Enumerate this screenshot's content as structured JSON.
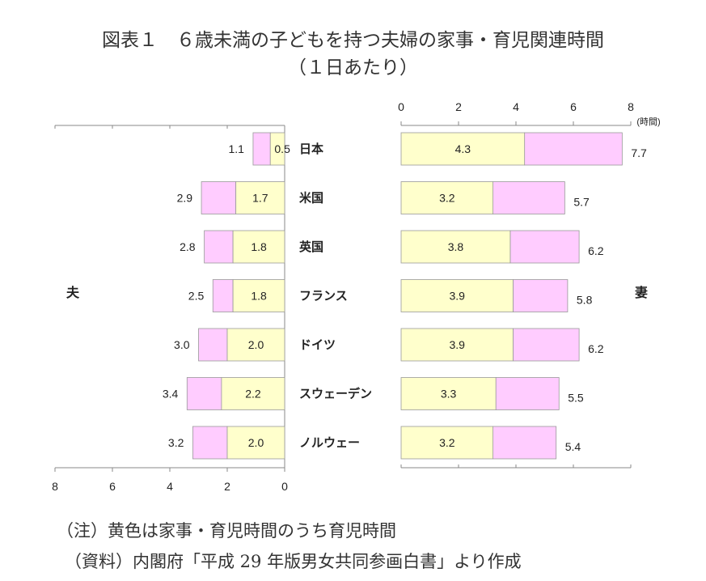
{
  "title": {
    "line1": "図表１　６歳未満の子どもを持つ夫婦の家事・育児関連時間",
    "line2": "（１日あたり）"
  },
  "chart_data": {
    "type": "bar",
    "categories": [
      "日本",
      "米国",
      "英国",
      "フランス",
      "ドイツ",
      "スウェーデン",
      "ノルウェー"
    ],
    "husband": {
      "label": "夫",
      "childcare": [
        0.5,
        1.7,
        1.8,
        1.8,
        2.0,
        2.2,
        2.0
      ],
      "total": [
        1.1,
        2.9,
        2.8,
        2.5,
        3.0,
        3.4,
        3.2
      ]
    },
    "wife": {
      "label": "妻",
      "childcare": [
        4.3,
        3.2,
        3.8,
        3.9,
        3.9,
        3.3,
        3.2
      ],
      "total": [
        7.7,
        5.7,
        6.2,
        5.8,
        6.2,
        5.5,
        5.4
      ]
    },
    "wife_axis": {
      "ticks": [
        "0",
        "2",
        "4",
        "6",
        "8"
      ],
      "unit": "(時間)",
      "range": [
        0,
        8
      ]
    },
    "husband_axis": {
      "ticks": [
        "8",
        "6",
        "4",
        "2",
        "0"
      ],
      "range": [
        0,
        8
      ]
    },
    "colors": {
      "childcare": "#ffffcc",
      "housework": "#ffccff",
      "border": "#999999",
      "axis": "#888888"
    }
  },
  "notes": {
    "line1": "（注）黄色は家事・育児時間のうち育児時間",
    "line2": "（資料）内閣府「平成 29 年版男女共同参画白書」より作成"
  }
}
